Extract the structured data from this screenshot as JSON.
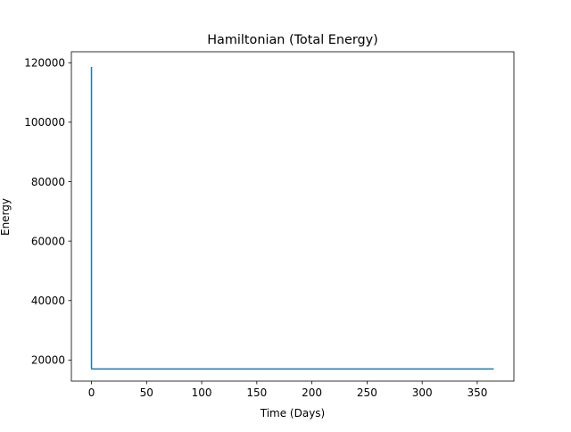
{
  "chart_data": {
    "type": "line",
    "title": "Hamiltonian (Total Energy)",
    "xlabel": "Time (Days)",
    "ylabel": "Energy",
    "xlim": [
      -18.25,
      383.25
    ],
    "ylim": [
      12900,
      123700
    ],
    "xticks": [
      0,
      50,
      100,
      150,
      200,
      250,
      300,
      350
    ],
    "yticks": [
      20000,
      40000,
      60000,
      80000,
      100000,
      120000
    ],
    "grid": false,
    "series": [
      {
        "color": "#1f77b4",
        "x": [
          0,
          0,
          1,
          50,
          100,
          150,
          200,
          250,
          300,
          365
        ],
        "y": [
          118600,
          17100,
          17000,
          17000,
          17000,
          17000,
          17000,
          17000,
          17000,
          17000
        ]
      }
    ]
  }
}
